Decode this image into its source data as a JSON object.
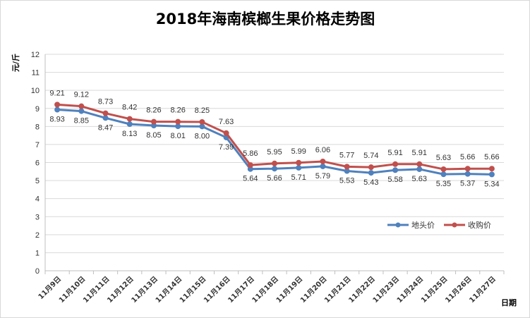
{
  "chart_data": {
    "type": "line",
    "title": "2018年海南槟榔生果价格走势图",
    "ylabel": "元/斤",
    "xlabel": "日期",
    "ylim": [
      0,
      12
    ],
    "yticks": [
      0,
      1,
      2,
      3,
      4,
      5,
      6,
      7,
      8,
      9,
      10,
      11,
      12
    ],
    "grid": true,
    "legend_position": "right",
    "categories": [
      "11月9日",
      "11月10日",
      "11月11日",
      "11月12日",
      "11月13日",
      "11月14日",
      "11月15日",
      "11月16日",
      "11月17日",
      "11月18日",
      "11月19日",
      "11月20日",
      "11月21日",
      "11月22日",
      "11月23日",
      "11月24日",
      "11月25日",
      "11月26日",
      "11月27日"
    ],
    "series": [
      {
        "name": "地头价",
        "color": "#4f81bd",
        "values": [
          8.93,
          8.85,
          8.47,
          8.13,
          8.05,
          8.01,
          8.0,
          7.39,
          5.64,
          5.66,
          5.71,
          5.79,
          5.53,
          5.43,
          5.58,
          5.63,
          5.35,
          5.37,
          5.34
        ]
      },
      {
        "name": "收购价",
        "color": "#c0504d",
        "values": [
          9.21,
          9.12,
          8.73,
          8.42,
          8.26,
          8.26,
          8.25,
          7.63,
          5.86,
          5.95,
          5.99,
          6.06,
          5.77,
          5.74,
          5.91,
          5.91,
          5.63,
          5.66,
          5.66
        ]
      }
    ]
  }
}
